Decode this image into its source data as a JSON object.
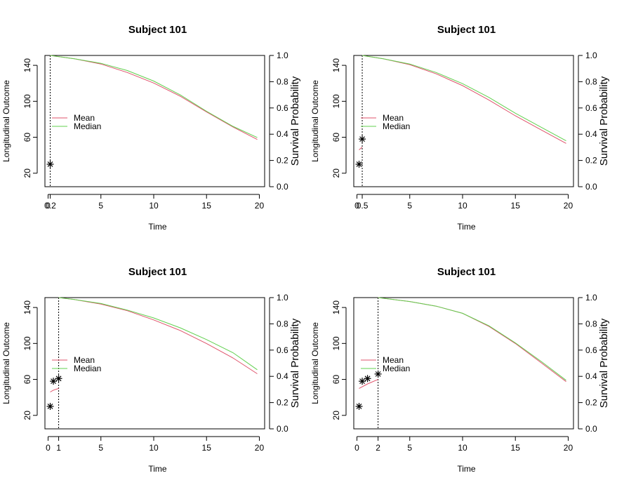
{
  "chart_data": [
    {
      "type": "line",
      "title": "Subject 101",
      "xlabel": "Time",
      "ylabel_left": "Longitudinal Outcome",
      "ylabel_right": "Survival Probability",
      "xlim": [
        -0.3,
        20.5
      ],
      "ylim_left": [
        5,
        151
      ],
      "ylim_right": [
        0,
        1
      ],
      "x_ticks": [
        0,
        5,
        10,
        15,
        20
      ],
      "y_left_ticks": [
        20,
        60,
        100,
        140
      ],
      "y_right_ticks": [
        0.0,
        0.2,
        0.4,
        0.6,
        0.8,
        1.0
      ],
      "y_right_tick_labels": [
        "0.0",
        "0.2",
        "0.4",
        "0.6",
        "0.8",
        "1.0"
      ],
      "landmark_time": 0.2,
      "landmark_label": "0.2",
      "observed_points": [
        {
          "x": 0.2,
          "y": 30
        }
      ],
      "longitudinal_fit": [],
      "legend": [
        {
          "label": "Mean",
          "color": "#DF536B"
        },
        {
          "label": "Median",
          "color": "#61D04F"
        }
      ],
      "series": [
        {
          "name": "Mean",
          "color": "#DF536B",
          "x": [
            0.2,
            2.5,
            5,
            7.5,
            10,
            12.5,
            15,
            17.5,
            19.8
          ],
          "y": [
            1.0,
            0.975,
            0.935,
            0.87,
            0.79,
            0.69,
            0.57,
            0.455,
            0.36
          ]
        },
        {
          "name": "Median",
          "color": "#61D04F",
          "x": [
            0.2,
            2.5,
            5,
            7.5,
            10,
            12.5,
            15,
            17.5,
            19.8
          ],
          "y": [
            1.0,
            0.975,
            0.94,
            0.885,
            0.805,
            0.7,
            0.575,
            0.46,
            0.375
          ]
        }
      ]
    },
    {
      "type": "line",
      "title": "Subject 101",
      "xlabel": "Time",
      "ylabel_left": "Longitudinal Outcome",
      "ylabel_right": "Survival Probability",
      "xlim": [
        -0.3,
        20.5
      ],
      "ylim_left": [
        5,
        151
      ],
      "ylim_right": [
        0,
        1
      ],
      "x_ticks": [
        0,
        5,
        10,
        15,
        20
      ],
      "y_left_ticks": [
        20,
        60,
        100,
        140
      ],
      "y_right_ticks": [
        0.0,
        0.2,
        0.4,
        0.6,
        0.8,
        1.0
      ],
      "y_right_tick_labels": [
        "0.0",
        "0.2",
        "0.4",
        "0.6",
        "0.8",
        "1.0"
      ],
      "landmark_time": 0.5,
      "landmark_label": "0.5",
      "observed_points": [
        {
          "x": 0.2,
          "y": 30
        },
        {
          "x": 0.5,
          "y": 58
        }
      ],
      "longitudinal_fit": [
        {
          "x": 0.2,
          "y": 46
        },
        {
          "x": 0.5,
          "y": 49
        }
      ],
      "legend": [
        {
          "label": "Mean",
          "color": "#DF536B"
        },
        {
          "label": "Median",
          "color": "#61D04F"
        }
      ],
      "series": [
        {
          "name": "Mean",
          "color": "#DF536B",
          "x": [
            0.5,
            2.5,
            5,
            7.5,
            10,
            12.5,
            15,
            17.5,
            19.8
          ],
          "y": [
            1.0,
            0.975,
            0.93,
            0.86,
            0.77,
            0.66,
            0.54,
            0.43,
            0.33
          ]
        },
        {
          "name": "Median",
          "color": "#61D04F",
          "x": [
            0.5,
            2.5,
            5,
            7.5,
            10,
            12.5,
            15,
            17.5,
            19.8
          ],
          "y": [
            1.0,
            0.975,
            0.935,
            0.87,
            0.785,
            0.68,
            0.56,
            0.45,
            0.35
          ]
        }
      ]
    },
    {
      "type": "line",
      "title": "Subject 101",
      "xlabel": "Time",
      "ylabel_left": "Longitudinal Outcome",
      "ylabel_right": "Survival Probability",
      "xlim": [
        -0.3,
        20.5
      ],
      "ylim_left": [
        5,
        151
      ],
      "ylim_right": [
        0,
        1
      ],
      "x_ticks": [
        0,
        5,
        10,
        15,
        20
      ],
      "y_left_ticks": [
        20,
        60,
        100,
        140
      ],
      "y_right_ticks": [
        0.0,
        0.2,
        0.4,
        0.6,
        0.8,
        1.0
      ],
      "y_right_tick_labels": [
        "0.0",
        "0.2",
        "0.4",
        "0.6",
        "0.8",
        "1.0"
      ],
      "landmark_time": 1,
      "landmark_label": "1",
      "observed_points": [
        {
          "x": 0.2,
          "y": 30
        },
        {
          "x": 0.5,
          "y": 58
        },
        {
          "x": 1.0,
          "y": 61
        }
      ],
      "longitudinal_fit": [
        {
          "x": 0.2,
          "y": 46
        },
        {
          "x": 0.5,
          "y": 48
        },
        {
          "x": 1.0,
          "y": 50
        }
      ],
      "legend": [
        {
          "label": "Mean",
          "color": "#DF536B"
        },
        {
          "label": "Median",
          "color": "#61D04F"
        }
      ],
      "series": [
        {
          "name": "Mean",
          "color": "#DF536B",
          "x": [
            1.0,
            2.5,
            5,
            7.5,
            10,
            12.5,
            15,
            17.5,
            19.8
          ],
          "y": [
            1.0,
            0.985,
            0.95,
            0.9,
            0.83,
            0.75,
            0.65,
            0.54,
            0.42
          ]
        },
        {
          "name": "Median",
          "color": "#61D04F",
          "x": [
            1.0,
            2.5,
            5,
            7.5,
            10,
            12.5,
            15,
            17.5,
            19.8
          ],
          "y": [
            1.0,
            0.985,
            0.955,
            0.905,
            0.845,
            0.77,
            0.68,
            0.58,
            0.45
          ]
        }
      ]
    },
    {
      "type": "line",
      "title": "Subject 101",
      "xlabel": "Time",
      "ylabel_left": "Longitudinal Outcome",
      "ylabel_right": "Survival Probability",
      "xlim": [
        -0.3,
        20.5
      ],
      "ylim_left": [
        5,
        151
      ],
      "ylim_right": [
        0,
        1
      ],
      "x_ticks": [
        0,
        5,
        10,
        15,
        20
      ],
      "y_left_ticks": [
        20,
        60,
        100,
        140
      ],
      "y_right_ticks": [
        0.0,
        0.2,
        0.4,
        0.6,
        0.8,
        1.0
      ],
      "y_right_tick_labels": [
        "0.0",
        "0.2",
        "0.4",
        "0.6",
        "0.8",
        "1.0"
      ],
      "landmark_time": 2,
      "landmark_label": "2",
      "observed_points": [
        {
          "x": 0.2,
          "y": 30
        },
        {
          "x": 0.5,
          "y": 58
        },
        {
          "x": 1.0,
          "y": 61
        },
        {
          "x": 2.0,
          "y": 66
        }
      ],
      "longitudinal_fit": [
        {
          "x": 0.2,
          "y": 50
        },
        {
          "x": 1.0,
          "y": 55
        },
        {
          "x": 2.0,
          "y": 60
        }
      ],
      "legend": [
        {
          "label": "Mean",
          "color": "#DF536B"
        },
        {
          "label": "Median",
          "color": "#61D04F"
        }
      ],
      "series": [
        {
          "name": "Mean",
          "color": "#DF536B",
          "x": [
            2.0,
            5,
            7.5,
            10,
            12.5,
            15,
            17.5,
            19.8
          ],
          "y": [
            1.0,
            0.97,
            0.935,
            0.88,
            0.78,
            0.65,
            0.5,
            0.36
          ]
        },
        {
          "name": "Median",
          "color": "#61D04F",
          "x": [
            2.0,
            5,
            7.5,
            10,
            12.5,
            15,
            17.5,
            19.8
          ],
          "y": [
            1.0,
            0.97,
            0.935,
            0.88,
            0.785,
            0.655,
            0.51,
            0.37
          ]
        }
      ]
    }
  ]
}
